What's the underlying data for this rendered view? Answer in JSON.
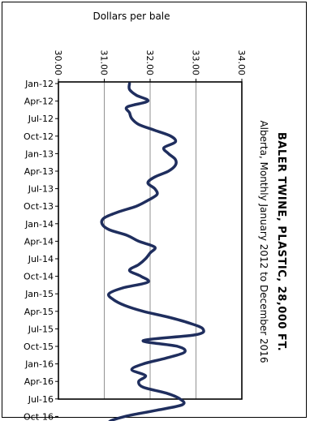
{
  "chart_data": {
    "type": "line",
    "title": "BALER TWINE, PLASTIC, 28,000 FT.",
    "subtitle": "Alberta, Monthly January 2012 to December 2016",
    "ylabel": "Dollars per bale",
    "xlabel": "",
    "ylim": [
      30.0,
      34.0
    ],
    "yticks": [
      "30.00",
      "31.00",
      "32.00",
      "33.00",
      "34.00"
    ],
    "grid": true,
    "legend": "none",
    "line_color": "#1f2e5e",
    "x_tick_labels": [
      "Jan-12",
      "Apr-12",
      "Jul-12",
      "Oct-12",
      "Jan-13",
      "Apr-13",
      "Jul-13",
      "Oct-13",
      "Jan-14",
      "Apr-14",
      "Jul-14",
      "Oct-14",
      "Jan-15",
      "Apr-15",
      "Jul-15",
      "Oct-15",
      "Jan-16",
      "Apr-16",
      "Jul-16",
      "Oct-16"
    ],
    "series": [
      {
        "values": [
          31.55,
          31.55,
          31.7,
          31.95,
          31.5,
          31.55,
          31.6,
          31.75,
          32.1,
          32.45,
          32.55,
          32.3,
          32.4,
          32.55,
          32.55,
          32.4,
          32.1,
          31.95,
          32.1,
          32.15,
          31.95,
          31.7,
          31.3,
          31.0,
          30.95,
          31.1,
          31.5,
          31.75,
          32.1,
          32.0,
          31.9,
          31.75,
          31.55,
          31.8,
          31.95,
          31.4,
          31.1,
          31.2,
          31.45,
          31.85,
          32.4,
          32.85,
          33.15,
          33.0,
          31.85,
          32.6,
          32.75,
          32.35,
          31.85,
          31.6,
          31.9,
          31.75,
          31.85,
          32.35,
          32.65,
          32.7,
          32.1,
          31.45,
          31.1,
          31.35
        ]
      }
    ]
  }
}
